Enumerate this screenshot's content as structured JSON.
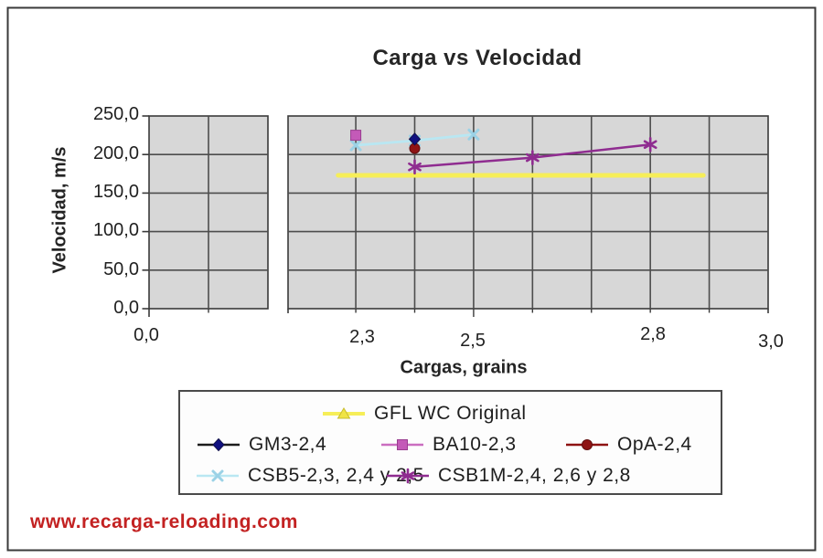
{
  "title": "Carga vs Velocidad",
  "watermark": "www.recarga-reloading.com",
  "chart_data": {
    "type": "line",
    "title": "Carga vs Velocidad",
    "xlabel": "Cargas, grains",
    "ylabel": "Velocidad, m/s",
    "x_axis": {
      "broken": true,
      "left_segment_range": [
        0.0,
        0.2
      ],
      "right_segment_range": [
        2.185,
        3.0
      ],
      "gridline_step": 0.1,
      "ticks": [
        {
          "label": "0,0",
          "value": 0.0,
          "segment": "left"
        },
        {
          "label": "2,3",
          "value": 2.3,
          "segment": "right"
        },
        {
          "label": "2,5",
          "value": 2.5,
          "segment": "right"
        },
        {
          "label": "2,8",
          "value": 2.8,
          "segment": "right"
        },
        {
          "label": "3,0",
          "value": 3.0,
          "segment": "right"
        }
      ]
    },
    "ylim": [
      0,
      250
    ],
    "y_tick_labels": [
      "250,0",
      "200,0",
      "150,0",
      "100,0",
      "50,0",
      "0,0"
    ],
    "y_tick_values": [
      250,
      200,
      150,
      100,
      50,
      0
    ],
    "grid": true,
    "legend_position": "bottom",
    "series": [
      {
        "name": "GFL WC Original",
        "marker": "triangle",
        "show_markers_on_chart": false,
        "color": "#F0E445",
        "line_color": "#F6EE58",
        "points": [
          [
            2.27,
            173
          ],
          [
            2.89,
            173
          ]
        ]
      },
      {
        "name": "GM3-2,4",
        "marker": "diamond",
        "color": "#101080",
        "line_color": "#1c1c1c",
        "points": [
          [
            2.4,
            220
          ]
        ]
      },
      {
        "name": "BA10-2,3",
        "marker": "square",
        "color": "#C45AB8",
        "line_color": "#CB6EC0",
        "points": [
          [
            2.3,
            225
          ]
        ]
      },
      {
        "name": "OpA-2,4",
        "marker": "circle",
        "color": "#8F1414",
        "line_color": "#8E1212",
        "points": [
          [
            2.4,
            208
          ]
        ]
      },
      {
        "name": "CSB5-2,3, 2,4 y 2,5",
        "marker": "x",
        "color": "#9BD2E6",
        "line_color": "#B9E7F2",
        "points": [
          [
            2.3,
            212
          ],
          [
            2.4,
            218
          ],
          [
            2.5,
            226
          ]
        ]
      },
      {
        "name": "CSB1M-2,4, 2,6 y 2,8",
        "marker": "asterisk",
        "color": "#8F2C90",
        "line_color": "#8F2C90",
        "points": [
          [
            2.4,
            184
          ],
          [
            2.6,
            196
          ],
          [
            2.8,
            213
          ]
        ]
      }
    ],
    "colors": {
      "plot_bg": "#D7D7D7",
      "gridline": "#4d4d4d",
      "axis": "#3a3a3a",
      "frame": "#3a3a3a",
      "watermark_red": "#C32222"
    }
  }
}
